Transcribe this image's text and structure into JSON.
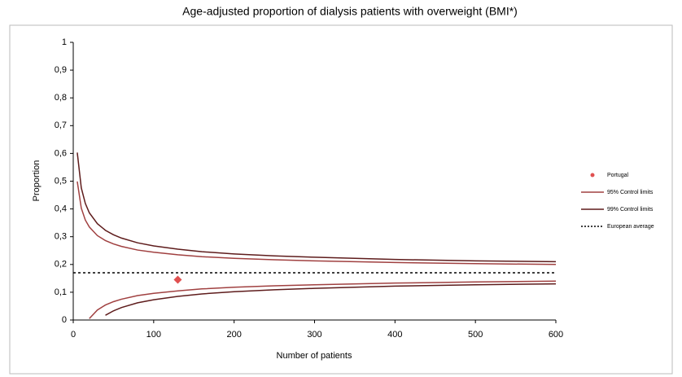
{
  "chart_data": {
    "type": "funnel",
    "title": "Age-adjusted proportion of dialysis patients with overweight (BMI*)",
    "x_label": "Number of patients",
    "y_label": "Proportion",
    "xlim": [
      0,
      600
    ],
    "xticks": [
      0,
      100,
      200,
      300,
      400,
      500,
      600
    ],
    "ylim": [
      0,
      1
    ],
    "yticks": [
      0,
      {
        "value": 0.1,
        "label": "0,1"
      },
      {
        "value": 0.2,
        "label": "0,2"
      },
      {
        "value": 0.3,
        "label": "0,3"
      },
      {
        "value": 0.4,
        "label": "0,4"
      },
      {
        "value": 0.5,
        "label": "0,5"
      },
      {
        "value": 0.6,
        "label": "0,6"
      },
      {
        "value": 0.7,
        "label": "0,7"
      },
      {
        "value": 0.8,
        "label": "0,8"
      },
      {
        "value": 0.9,
        "label": "0,9"
      },
      1
    ],
    "x": [
      5,
      10,
      15,
      20,
      30,
      40,
      50,
      60,
      80,
      100,
      130,
      160,
      200,
      250,
      300,
      400,
      500,
      600
    ],
    "series": [
      {
        "name": "Portugal",
        "kind": "point",
        "color": "#e05050",
        "x": [
          130
        ],
        "values": [
          0.145
        ]
      },
      {
        "name": "95% Control limits",
        "kind": "limits",
        "color": "#a04040",
        "upper": [
          0.499,
          0.403,
          0.36,
          0.335,
          0.304,
          0.286,
          0.274,
          0.265,
          0.252,
          0.244,
          0.235,
          0.228,
          0.222,
          0.217,
          0.213,
          0.207,
          0.203,
          0.2
        ],
        "lower": [
          null,
          null,
          null,
          0.005,
          0.036,
          0.054,
          0.066,
          0.075,
          0.088,
          0.096,
          0.105,
          0.112,
          0.118,
          0.123,
          0.127,
          0.133,
          0.137,
          0.14
        ]
      },
      {
        "name": "99% Control limits",
        "kind": "limits",
        "color": "#5e1c1c",
        "upper": [
          0.603,
          0.476,
          0.42,
          0.386,
          0.347,
          0.323,
          0.307,
          0.295,
          0.278,
          0.267,
          0.255,
          0.246,
          0.238,
          0.231,
          0.226,
          0.218,
          0.213,
          0.21
        ],
        "lower": [
          null,
          null,
          null,
          null,
          null,
          0.017,
          0.033,
          0.045,
          0.062,
          0.073,
          0.085,
          0.094,
          0.102,
          0.109,
          0.114,
          0.122,
          0.127,
          0.13
        ]
      },
      {
        "name": "European average",
        "kind": "average",
        "color": "#000000",
        "value": 0.17
      }
    ]
  }
}
